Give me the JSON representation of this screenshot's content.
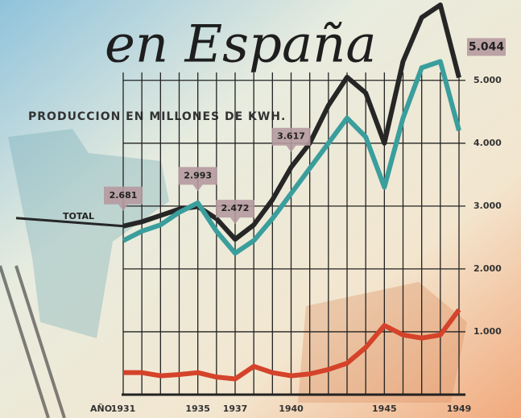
{
  "chart_data": {
    "type": "line",
    "title": "en España",
    "subtitle": "PRODUCCION EN MILLONES DE KWH.",
    "x_axis_label": "AÑO",
    "x": [
      1931,
      1932,
      1933,
      1934,
      1935,
      1936,
      1937,
      1938,
      1939,
      1940,
      1941,
      1942,
      1943,
      1944,
      1945,
      1946,
      1947,
      1948,
      1949
    ],
    "xlim": [
      1931,
      1949
    ],
    "xticks": [
      1931,
      1935,
      1937,
      1940,
      1945,
      1949
    ],
    "ylim": [
      0,
      6150
    ],
    "yticks": [
      {
        "value": 1000,
        "label": "1.000"
      },
      {
        "value": 2000,
        "label": "2.000"
      },
      {
        "value": 3000,
        "label": "3.000"
      },
      {
        "value": 4000,
        "label": "4.000"
      },
      {
        "value": 5000,
        "label": "5.000"
      }
    ],
    "grid": true,
    "series": [
      {
        "name": "TOTAL",
        "color": "#262626",
        "values": [
          2681,
          2750,
          2850,
          2950,
          2993,
          2800,
          2472,
          2700,
          3100,
          3617,
          4000,
          4600,
          5050,
          4800,
          4000,
          5300,
          6000,
          6200,
          5044
        ],
        "value_labels": [
          "2.681",
          null,
          null,
          null,
          "2.993",
          null,
          "2.472",
          null,
          null,
          "3.617",
          null,
          null,
          null,
          null,
          null,
          null,
          null,
          null,
          "5.044"
        ]
      },
      {
        "color": "#3a9e9c",
        "values": [
          2450,
          2600,
          2700,
          2900,
          3050,
          2600,
          2250,
          2450,
          2800,
          3200,
          3600,
          4000,
          4400,
          4100,
          3300,
          4400,
          5200,
          5300,
          4200
        ]
      },
      {
        "color": "#d4432a",
        "values": [
          350,
          350,
          300,
          320,
          350,
          280,
          250,
          450,
          350,
          300,
          330,
          400,
          500,
          750,
          1100,
          950,
          900,
          950,
          1350
        ]
      }
    ]
  }
}
